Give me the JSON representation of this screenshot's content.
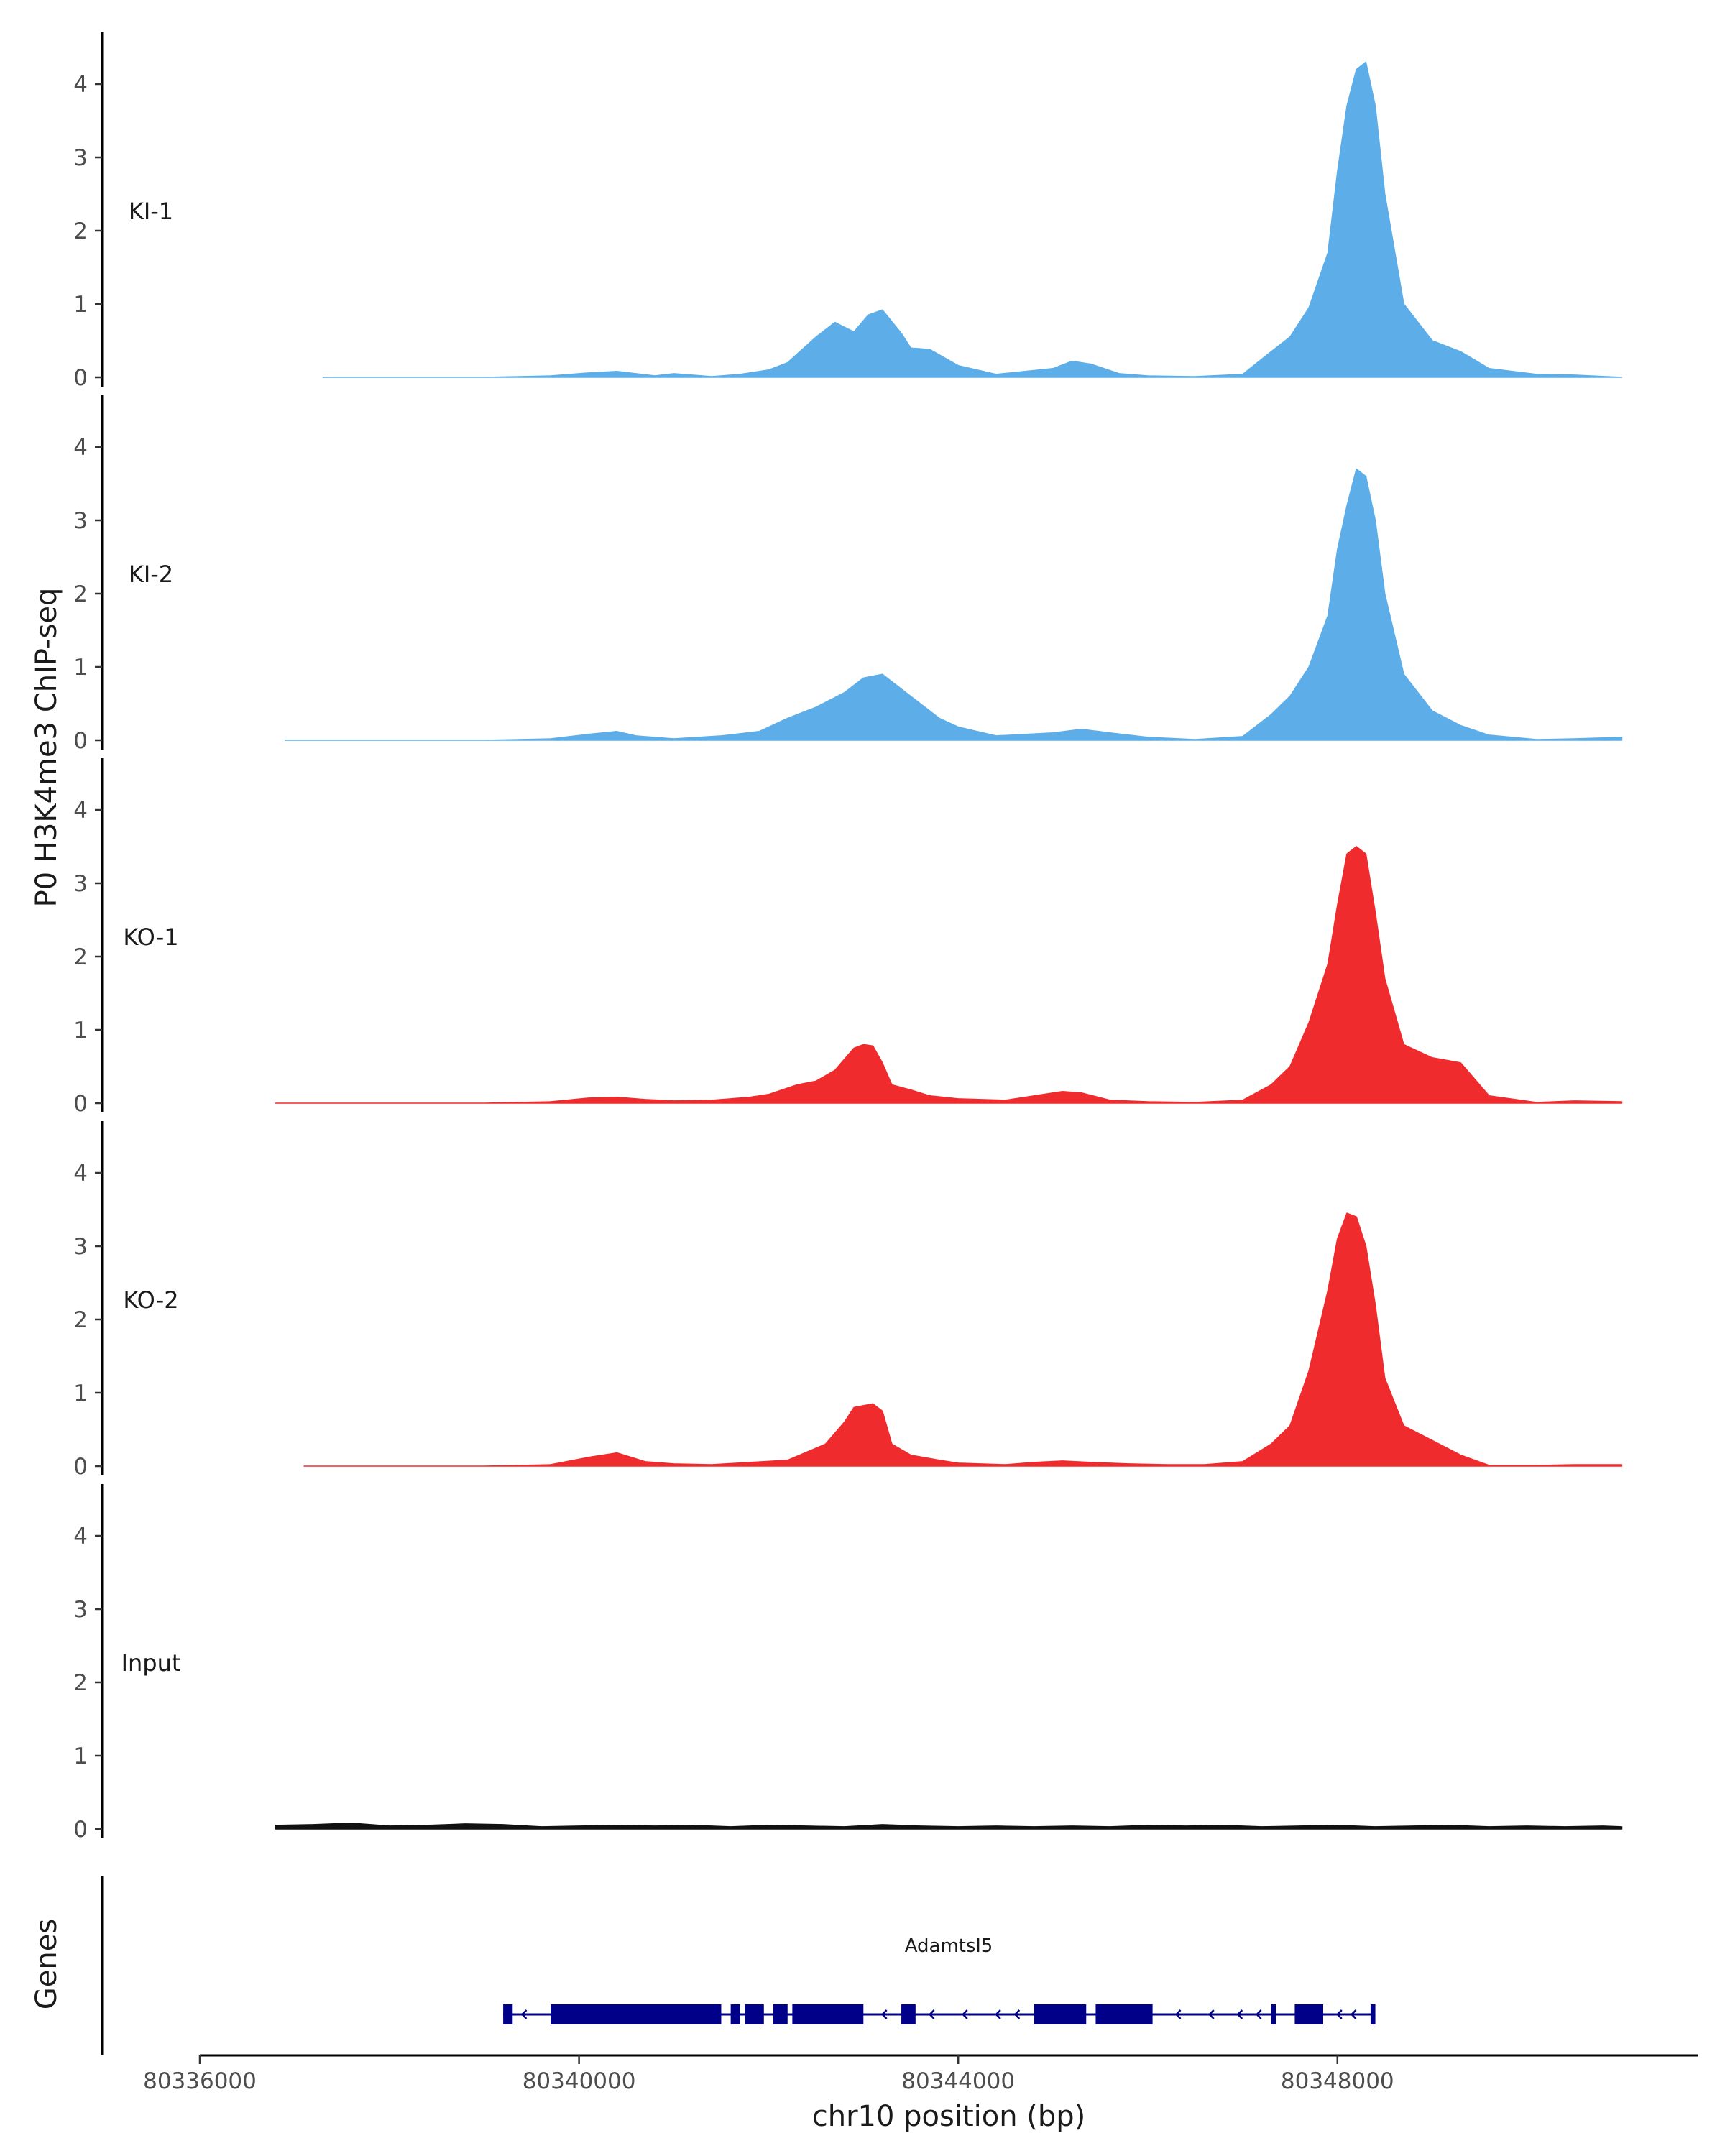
{
  "chart_data": {
    "type": "area",
    "title": "",
    "ylabel": "P0 H3K4me3 ChIP-seq",
    "xlabel": "chr10 position (bp)",
    "chromosome": "chr10",
    "xlim": [
      80336000,
      80351800
    ],
    "ylim": [
      0,
      4.5
    ],
    "x_ticks": [
      80336000,
      80340000,
      80344000,
      80348000
    ],
    "x_tick_labels": [
      "80336000",
      "80340000",
      "80344000",
      "80348000"
    ],
    "y_ticks": [
      0,
      1,
      2,
      3,
      4
    ],
    "y_tick_labels": [
      "0",
      "1",
      "2",
      "3",
      "4"
    ],
    "colors": {
      "KI": "#5dade9",
      "KO": "#ef2b2d",
      "Input": "#111111",
      "gene": "#000088",
      "axis": "#000000"
    },
    "tracks": [
      {
        "name": "KI-1",
        "color": "#5dade9",
        "x": [
          80337300,
          80339000,
          80339700,
          80340100,
          80340400,
          80340600,
          80340800,
          80341000,
          80341400,
          80341700,
          80342000,
          80342200,
          80342500,
          80342700,
          80342900,
          80343050,
          80343200,
          80343400,
          80343500,
          80343700,
          80344000,
          80344400,
          80345000,
          80345200,
          80345400,
          80345700,
          80346000,
          80346500,
          80347000,
          80347300,
          80347500,
          80347700,
          80347900,
          80348000,
          80348100,
          80348200,
          80348300,
          80348400,
          80348500,
          80348700,
          80349000,
          80349300,
          80349600,
          80350100,
          80350500,
          80351000
        ],
        "y": [
          0,
          0,
          0.02,
          0.06,
          0.08,
          0.05,
          0.02,
          0.05,
          0.01,
          0.04,
          0.1,
          0.2,
          0.55,
          0.75,
          0.62,
          0.85,
          0.92,
          0.6,
          0.4,
          0.38,
          0.16,
          0.04,
          0.12,
          0.22,
          0.18,
          0.05,
          0.02,
          0.01,
          0.04,
          0.35,
          0.55,
          0.95,
          1.7,
          2.8,
          3.7,
          4.2,
          4.3,
          3.7,
          2.5,
          1.0,
          0.5,
          0.35,
          0.12,
          0.04,
          0.03,
          0
        ]
      },
      {
        "name": "KI-2",
        "color": "#5dade9",
        "x": [
          80336900,
          80339000,
          80339700,
          80340100,
          80340400,
          80340600,
          80341000,
          80341500,
          80341900,
          80342200,
          80342500,
          80342800,
          80343000,
          80343200,
          80343500,
          80343800,
          80344000,
          80344400,
          80345000,
          80345300,
          80345600,
          80346000,
          80346500,
          80347000,
          80347300,
          80347500,
          80347700,
          80347900,
          80348000,
          80348100,
          80348200,
          80348300,
          80348400,
          80348500,
          80348700,
          80349000,
          80349300,
          80349600,
          80350100,
          80350500,
          80351000
        ],
        "y": [
          0,
          0,
          0.02,
          0.08,
          0.12,
          0.06,
          0.02,
          0.06,
          0.12,
          0.3,
          0.45,
          0.65,
          0.85,
          0.9,
          0.6,
          0.3,
          0.18,
          0.06,
          0.1,
          0.15,
          0.1,
          0.04,
          0.01,
          0.05,
          0.35,
          0.6,
          1.0,
          1.7,
          2.6,
          3.2,
          3.7,
          3.6,
          3.0,
          2.0,
          0.9,
          0.4,
          0.2,
          0.07,
          0.01,
          0.02,
          0.04
        ]
      },
      {
        "name": "KO-1",
        "color": "#ef2b2d",
        "x": [
          80336800,
          80339000,
          80339700,
          80340100,
          80340400,
          80340700,
          80341000,
          80341400,
          80341800,
          80342000,
          80342300,
          80342500,
          80342700,
          80342900,
          80343000,
          80343100,
          80343200,
          80343300,
          80343500,
          80343700,
          80344000,
          80344500,
          80344900,
          80345100,
          80345300,
          80345600,
          80346000,
          80346500,
          80347000,
          80347300,
          80347500,
          80347700,
          80347900,
          80348000,
          80348100,
          80348200,
          80348300,
          80348400,
          80348500,
          80348700,
          80349000,
          80349300,
          80349600,
          80350100,
          80350500,
          80351000
        ],
        "y": [
          0,
          0,
          0.02,
          0.07,
          0.08,
          0.05,
          0.03,
          0.04,
          0.08,
          0.12,
          0.25,
          0.3,
          0.45,
          0.75,
          0.8,
          0.78,
          0.55,
          0.25,
          0.18,
          0.1,
          0.06,
          0.04,
          0.12,
          0.16,
          0.14,
          0.04,
          0.02,
          0.01,
          0.04,
          0.25,
          0.5,
          1.1,
          1.9,
          2.7,
          3.4,
          3.5,
          3.4,
          2.6,
          1.7,
          0.8,
          0.62,
          0.55,
          0.1,
          0.01,
          0.03,
          0.02
        ]
      },
      {
        "name": "KO-2",
        "color": "#ef2b2d",
        "x": [
          80337100,
          80339000,
          80339700,
          80340100,
          80340400,
          80340700,
          80341000,
          80341400,
          80341800,
          80342200,
          80342600,
          80342800,
          80342900,
          80343100,
          80343200,
          80343300,
          80343500,
          80343800,
          80344000,
          80344500,
          80344800,
          80345100,
          80345400,
          80345800,
          80346200,
          80346600,
          80347000,
          80347300,
          80347500,
          80347700,
          80347900,
          80348000,
          80348100,
          80348200,
          80348300,
          80348400,
          80348500,
          80348700,
          80349000,
          80349300,
          80349600,
          80350100,
          80350500,
          80351000
        ],
        "y": [
          0,
          0,
          0.02,
          0.12,
          0.18,
          0.06,
          0.03,
          0.02,
          0.05,
          0.08,
          0.3,
          0.6,
          0.8,
          0.85,
          0.75,
          0.3,
          0.15,
          0.08,
          0.04,
          0.02,
          0.05,
          0.07,
          0.05,
          0.03,
          0.02,
          0.02,
          0.06,
          0.3,
          0.55,
          1.3,
          2.4,
          3.1,
          3.45,
          3.4,
          3.0,
          2.2,
          1.2,
          0.55,
          0.35,
          0.15,
          0.01,
          0.01,
          0.02,
          0.02
        ]
      },
      {
        "name": "Input",
        "color": "#111111",
        "x": [
          80336800,
          80337200,
          80337600,
          80338000,
          80338400,
          80338800,
          80339200,
          80339600,
          80340000,
          80340400,
          80340800,
          80341200,
          80341600,
          80342000,
          80342400,
          80342800,
          80343200,
          80343600,
          80344000,
          80344400,
          80344800,
          80345200,
          80345600,
          80346000,
          80346400,
          80346800,
          80347200,
          80347600,
          80348000,
          80348400,
          80348800,
          80349200,
          80349600,
          80350000,
          80350400,
          80350800,
          80351000
        ],
        "y": [
          0.05,
          0.06,
          0.08,
          0.04,
          0.05,
          0.07,
          0.06,
          0.03,
          0.04,
          0.05,
          0.04,
          0.05,
          0.03,
          0.05,
          0.04,
          0.03,
          0.06,
          0.04,
          0.03,
          0.04,
          0.03,
          0.04,
          0.03,
          0.05,
          0.04,
          0.05,
          0.03,
          0.04,
          0.05,
          0.03,
          0.04,
          0.05,
          0.03,
          0.04,
          0.03,
          0.04,
          0.03
        ]
      }
    ],
    "gene_track": {
      "title": "Genes",
      "gene": "Adamtsl5",
      "strand": "-",
      "start": 80339200,
      "end": 80348400,
      "exons": [
        [
          80339200,
          80339300
        ],
        [
          80339700,
          80341500
        ],
        [
          80341600,
          80341700
        ],
        [
          80341750,
          80341950
        ],
        [
          80342050,
          80342200
        ],
        [
          80342250,
          80343000
        ],
        [
          80343400,
          80343550
        ],
        [
          80344800,
          80345350
        ],
        [
          80345450,
          80346050
        ],
        [
          80347300,
          80347350
        ],
        [
          80347550,
          80347850
        ],
        [
          80348350,
          80348400
        ]
      ],
      "arrow_positions": [
        80339400,
        80342400,
        80343200,
        80343700,
        80344050,
        80344400,
        80344600,
        80346300,
        80346650,
        80346950,
        80347150,
        80348000,
        80348150
      ]
    }
  }
}
